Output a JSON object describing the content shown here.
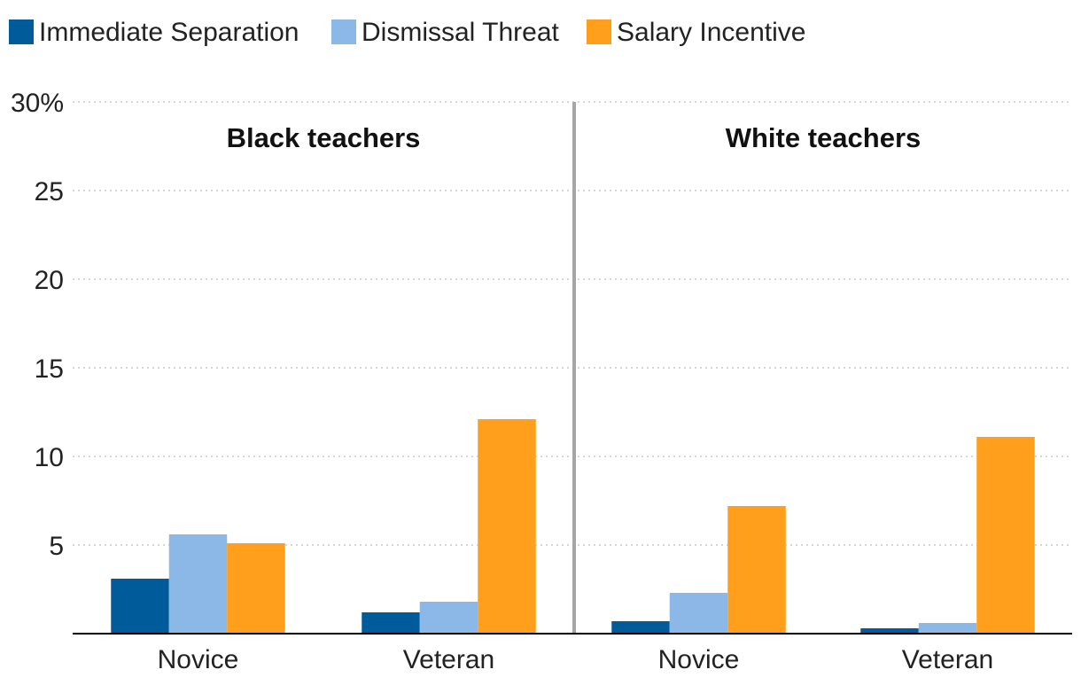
{
  "chart_data": {
    "type": "bar",
    "title": "",
    "xlabel": "",
    "ylabel": "",
    "ylim": [
      0,
      30
    ],
    "y_ticks": [
      {
        "value": 30,
        "label": "30%"
      },
      {
        "value": 25,
        "label": "25"
      },
      {
        "value": 20,
        "label": "20"
      },
      {
        "value": 15,
        "label": "15"
      },
      {
        "value": 10,
        "label": "10"
      },
      {
        "value": 5,
        "label": "5"
      }
    ],
    "grid": true,
    "legend_position": "top-left",
    "series_names": [
      "Immediate Separation",
      "Dismissal Threat",
      "Salary Incentive"
    ],
    "colors": [
      "#005b9a",
      "#8cb8e8",
      "#ff9f1c"
    ],
    "panels": [
      {
        "title": "Black teachers",
        "categories": [
          "Novice",
          "Veteran"
        ],
        "series": [
          {
            "name": "Immediate Separation",
            "values": [
              3.1,
              1.2
            ]
          },
          {
            "name": "Dismissal Threat",
            "values": [
              5.6,
              1.8
            ]
          },
          {
            "name": "Salary Incentive",
            "values": [
              5.1,
              12.1
            ]
          }
        ]
      },
      {
        "title": "White teachers",
        "categories": [
          "Novice",
          "Veteran"
        ],
        "series": [
          {
            "name": "Immediate Separation",
            "values": [
              0.7,
              0.3
            ]
          },
          {
            "name": "Dismissal Threat",
            "values": [
              2.3,
              0.6
            ]
          },
          {
            "name": "Salary Incentive",
            "values": [
              7.2,
              11.1
            ]
          }
        ]
      }
    ]
  }
}
